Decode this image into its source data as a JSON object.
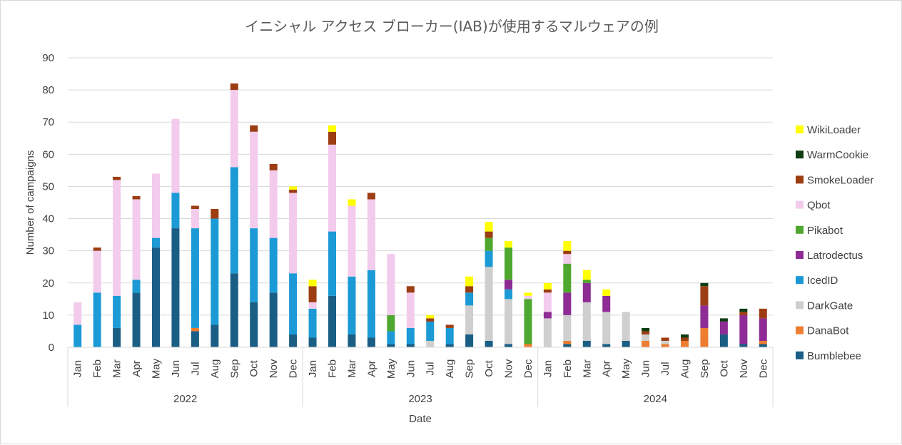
{
  "chart_data": {
    "type": "bar",
    "stacked": true,
    "title": "イニシャル アクセス ブローカー(IAB)が使用するマルウェアの例",
    "xlabel": "Date",
    "ylabel": "Number of campaigns",
    "ylim": [
      0,
      90
    ],
    "yticks": [
      0,
      10,
      20,
      30,
      40,
      50,
      60,
      70,
      80,
      90
    ],
    "grid": true,
    "legend_position": "right",
    "years": [
      {
        "label": "2022",
        "months": [
          "Jan",
          "Feb",
          "Mar",
          "Apr",
          "May",
          "Jun",
          "Jul",
          "Aug",
          "Sep",
          "Oct",
          "Nov",
          "Dec"
        ]
      },
      {
        "label": "2023",
        "months": [
          "Jan",
          "Feb",
          "Mar",
          "Apr",
          "May",
          "Jun",
          "Jul",
          "Aug",
          "Sep",
          "Oct",
          "Nov",
          "Dec"
        ]
      },
      {
        "label": "2024",
        "months": [
          "Jan",
          "Feb",
          "Mar",
          "Apr",
          "May",
          "Jun",
          "Jul",
          "Aug",
          "Sep",
          "Oct",
          "Nov",
          "Dec"
        ]
      }
    ],
    "series": [
      {
        "name": "Bumblebee",
        "color": "#1a5e85",
        "values": [
          0,
          0,
          6,
          17,
          31,
          37,
          5,
          7,
          23,
          14,
          17,
          4,
          3,
          16,
          4,
          3,
          1,
          1,
          0,
          1,
          4,
          2,
          1,
          0,
          0,
          1,
          2,
          1,
          2,
          0,
          0,
          0,
          0,
          4,
          1,
          1
        ]
      },
      {
        "name": "DanaBot",
        "color": "#ed7d31",
        "values": [
          0,
          0,
          0,
          0,
          0,
          0,
          1,
          0,
          0,
          0,
          0,
          0,
          0,
          0,
          0,
          0,
          0,
          0,
          0,
          0,
          0,
          0,
          0,
          1,
          0,
          1,
          0,
          0,
          0,
          2,
          1,
          2,
          6,
          0,
          0,
          1
        ]
      },
      {
        "name": "DarkGate",
        "color": "#cfcfcf",
        "values": [
          0,
          0,
          0,
          0,
          0,
          0,
          0,
          0,
          0,
          0,
          0,
          0,
          0,
          0,
          0,
          0,
          0,
          0,
          2,
          0,
          9,
          23,
          14,
          0,
          9,
          8,
          12,
          10,
          9,
          2,
          1,
          0,
          0,
          0,
          0,
          0
        ]
      },
      {
        "name": "IcedID",
        "color": "#1b9ad6",
        "values": [
          7,
          17,
          10,
          4,
          3,
          11,
          31,
          33,
          33,
          23,
          17,
          19,
          9,
          20,
          18,
          21,
          4,
          5,
          6,
          5,
          4,
          5,
          3,
          0,
          0,
          0,
          0,
          0,
          0,
          0,
          0,
          0,
          0,
          0,
          0,
          0
        ]
      },
      {
        "name": "Latrodectus",
        "color": "#8e2b94",
        "values": [
          0,
          0,
          0,
          0,
          0,
          0,
          0,
          0,
          0,
          0,
          0,
          0,
          0,
          0,
          0,
          0,
          0,
          0,
          0,
          0,
          0,
          0,
          3,
          0,
          2,
          7,
          6,
          5,
          0,
          0,
          0,
          0,
          7,
          4,
          9,
          7
        ]
      },
      {
        "name": "Pikabot",
        "color": "#4ea72e",
        "values": [
          0,
          0,
          0,
          0,
          0,
          0,
          0,
          0,
          0,
          0,
          0,
          0,
          0,
          0,
          0,
          0,
          5,
          0,
          0,
          0,
          0,
          4,
          10,
          14,
          0,
          9,
          1,
          0,
          0,
          0,
          0,
          0,
          0,
          0,
          0,
          0
        ]
      },
      {
        "name": "Qbot",
        "color": "#f2cbed",
        "values": [
          7,
          13,
          36,
          25,
          20,
          23,
          6,
          0,
          24,
          30,
          21,
          25,
          2,
          27,
          22,
          22,
          19,
          11,
          0,
          0,
          0,
          0,
          0,
          1,
          6,
          3,
          0,
          0,
          0,
          0,
          0,
          0,
          0,
          0,
          0,
          0
        ]
      },
      {
        "name": "SmokeLoader",
        "color": "#9c3d12",
        "values": [
          0,
          1,
          1,
          1,
          0,
          0,
          1,
          3,
          2,
          2,
          2,
          1,
          5,
          4,
          0,
          2,
          0,
          2,
          1,
          1,
          2,
          2,
          0,
          0,
          1,
          1,
          0,
          0,
          0,
          1,
          1,
          1,
          6,
          0,
          1,
          3
        ]
      },
      {
        "name": "WarmCookie",
        "color": "#0e3d14",
        "values": [
          0,
          0,
          0,
          0,
          0,
          0,
          0,
          0,
          0,
          0,
          0,
          0,
          0,
          0,
          0,
          0,
          0,
          0,
          0,
          0,
          0,
          0,
          0,
          0,
          0,
          0,
          0,
          0,
          0,
          1,
          0,
          1,
          1,
          1,
          1,
          0
        ]
      },
      {
        "name": "WikiLoader",
        "color": "#ffff00",
        "values": [
          0,
          0,
          0,
          0,
          0,
          0,
          0,
          0,
          0,
          0,
          0,
          1,
          2,
          2,
          2,
          0,
          0,
          0,
          1,
          0,
          3,
          3,
          2,
          1,
          2,
          3,
          3,
          2,
          0,
          0,
          0,
          0,
          0,
          0,
          0,
          0
        ]
      }
    ]
  }
}
